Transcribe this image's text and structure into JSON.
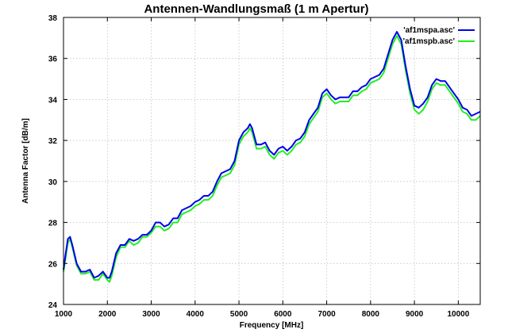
{
  "chart_data": {
    "type": "line",
    "title": "Antennen-Wandlungsmaß (1 m Apertur)",
    "xlabel": "Frequency [MHz]",
    "ylabel": "Antenna Factor [dB/m]",
    "xlim": [
      1000,
      10500
    ],
    "ylim": [
      24,
      38
    ],
    "xticks": [
      1000,
      2000,
      3000,
      4000,
      5000,
      6000,
      7000,
      8000,
      9000,
      10000
    ],
    "yticks": [
      24,
      26,
      28,
      30,
      32,
      34,
      36,
      38
    ],
    "grid": true,
    "legend_position": "top-right",
    "series": [
      {
        "name": "'af1mspa.asc'",
        "color": "#0000ee",
        "points": [
          [
            1000,
            25.7
          ],
          [
            1050,
            26.5
          ],
          [
            1100,
            27.2
          ],
          [
            1150,
            27.3
          ],
          [
            1200,
            26.9
          ],
          [
            1300,
            26.0
          ],
          [
            1400,
            25.6
          ],
          [
            1500,
            25.6
          ],
          [
            1600,
            25.7
          ],
          [
            1700,
            25.3
          ],
          [
            1800,
            25.4
          ],
          [
            1900,
            25.6
          ],
          [
            2000,
            25.3
          ],
          [
            2050,
            25.3
          ],
          [
            2100,
            25.6
          ],
          [
            2200,
            26.5
          ],
          [
            2300,
            26.9
          ],
          [
            2400,
            26.9
          ],
          [
            2500,
            27.2
          ],
          [
            2600,
            27.1
          ],
          [
            2700,
            27.2
          ],
          [
            2800,
            27.4
          ],
          [
            2900,
            27.4
          ],
          [
            3000,
            27.6
          ],
          [
            3100,
            28.0
          ],
          [
            3200,
            28.0
          ],
          [
            3300,
            27.8
          ],
          [
            3400,
            27.9
          ],
          [
            3500,
            28.2
          ],
          [
            3600,
            28.2
          ],
          [
            3700,
            28.6
          ],
          [
            3800,
            28.7
          ],
          [
            3900,
            28.8
          ],
          [
            4000,
            29.0
          ],
          [
            4100,
            29.1
          ],
          [
            4200,
            29.3
          ],
          [
            4300,
            29.3
          ],
          [
            4400,
            29.5
          ],
          [
            4500,
            30.0
          ],
          [
            4600,
            30.4
          ],
          [
            4700,
            30.5
          ],
          [
            4800,
            30.6
          ],
          [
            4900,
            31.0
          ],
          [
            5000,
            32.0
          ],
          [
            5100,
            32.4
          ],
          [
            5200,
            32.6
          ],
          [
            5250,
            32.8
          ],
          [
            5300,
            32.6
          ],
          [
            5400,
            31.8
          ],
          [
            5500,
            31.8
          ],
          [
            5600,
            31.9
          ],
          [
            5700,
            31.5
          ],
          [
            5800,
            31.3
          ],
          [
            5900,
            31.6
          ],
          [
            6000,
            31.7
          ],
          [
            6100,
            31.5
          ],
          [
            6200,
            31.7
          ],
          [
            6300,
            32.0
          ],
          [
            6400,
            32.1
          ],
          [
            6500,
            32.4
          ],
          [
            6600,
            33.0
          ],
          [
            6700,
            33.3
          ],
          [
            6800,
            33.6
          ],
          [
            6900,
            34.3
          ],
          [
            7000,
            34.5
          ],
          [
            7100,
            34.2
          ],
          [
            7200,
            34.0
          ],
          [
            7300,
            34.1
          ],
          [
            7400,
            34.1
          ],
          [
            7500,
            34.1
          ],
          [
            7600,
            34.4
          ],
          [
            7700,
            34.4
          ],
          [
            7800,
            34.6
          ],
          [
            7900,
            34.7
          ],
          [
            8000,
            35.0
          ],
          [
            8100,
            35.1
          ],
          [
            8200,
            35.2
          ],
          [
            8300,
            35.5
          ],
          [
            8400,
            36.2
          ],
          [
            8500,
            36.9
          ],
          [
            8600,
            37.3
          ],
          [
            8700,
            36.9
          ],
          [
            8800,
            35.6
          ],
          [
            8900,
            34.5
          ],
          [
            9000,
            33.7
          ],
          [
            9100,
            33.6
          ],
          [
            9200,
            33.8
          ],
          [
            9300,
            34.1
          ],
          [
            9400,
            34.7
          ],
          [
            9500,
            35.0
          ],
          [
            9600,
            34.9
          ],
          [
            9700,
            34.9
          ],
          [
            9800,
            34.6
          ],
          [
            9900,
            34.3
          ],
          [
            10000,
            34.0
          ],
          [
            10100,
            33.6
          ],
          [
            10200,
            33.5
          ],
          [
            10300,
            33.2
          ],
          [
            10400,
            33.3
          ],
          [
            10500,
            33.4
          ]
        ]
      },
      {
        "name": "'af1mspb.asc'",
        "color": "#22ee22",
        "points": [
          [
            1000,
            25.6
          ],
          [
            1050,
            26.3
          ],
          [
            1100,
            27.0
          ],
          [
            1150,
            27.2
          ],
          [
            1200,
            26.8
          ],
          [
            1300,
            25.9
          ],
          [
            1400,
            25.5
          ],
          [
            1500,
            25.5
          ],
          [
            1600,
            25.6
          ],
          [
            1700,
            25.2
          ],
          [
            1800,
            25.2
          ],
          [
            1900,
            25.5
          ],
          [
            2000,
            25.2
          ],
          [
            2050,
            25.1
          ],
          [
            2100,
            25.4
          ],
          [
            2200,
            26.3
          ],
          [
            2300,
            26.8
          ],
          [
            2400,
            26.8
          ],
          [
            2500,
            27.1
          ],
          [
            2600,
            26.9
          ],
          [
            2700,
            27.0
          ],
          [
            2800,
            27.3
          ],
          [
            2900,
            27.3
          ],
          [
            3000,
            27.5
          ],
          [
            3100,
            27.8
          ],
          [
            3200,
            27.8
          ],
          [
            3300,
            27.6
          ],
          [
            3400,
            27.7
          ],
          [
            3500,
            28.0
          ],
          [
            3600,
            28.0
          ],
          [
            3700,
            28.4
          ],
          [
            3800,
            28.5
          ],
          [
            3900,
            28.6
          ],
          [
            4000,
            28.8
          ],
          [
            4100,
            28.9
          ],
          [
            4200,
            29.1
          ],
          [
            4300,
            29.1
          ],
          [
            4400,
            29.3
          ],
          [
            4500,
            29.8
          ],
          [
            4600,
            30.2
          ],
          [
            4700,
            30.3
          ],
          [
            4800,
            30.4
          ],
          [
            4900,
            30.8
          ],
          [
            5000,
            31.8
          ],
          [
            5100,
            32.2
          ],
          [
            5200,
            32.4
          ],
          [
            5250,
            32.6
          ],
          [
            5300,
            32.4
          ],
          [
            5400,
            31.6
          ],
          [
            5500,
            31.6
          ],
          [
            5600,
            31.7
          ],
          [
            5700,
            31.3
          ],
          [
            5800,
            31.1
          ],
          [
            5900,
            31.4
          ],
          [
            6000,
            31.5
          ],
          [
            6100,
            31.3
          ],
          [
            6200,
            31.5
          ],
          [
            6300,
            31.8
          ],
          [
            6400,
            31.9
          ],
          [
            6500,
            32.2
          ],
          [
            6600,
            32.8
          ],
          [
            6700,
            33.1
          ],
          [
            6800,
            33.4
          ],
          [
            6900,
            34.1
          ],
          [
            7000,
            34.3
          ],
          [
            7100,
            34.0
          ],
          [
            7200,
            33.8
          ],
          [
            7300,
            33.9
          ],
          [
            7400,
            33.9
          ],
          [
            7500,
            33.9
          ],
          [
            7600,
            34.2
          ],
          [
            7700,
            34.2
          ],
          [
            7800,
            34.4
          ],
          [
            7900,
            34.5
          ],
          [
            8000,
            34.8
          ],
          [
            8100,
            34.9
          ],
          [
            8200,
            35.0
          ],
          [
            8300,
            35.3
          ],
          [
            8400,
            36.0
          ],
          [
            8500,
            36.7
          ],
          [
            8600,
            37.1
          ],
          [
            8700,
            36.7
          ],
          [
            8800,
            35.4
          ],
          [
            8900,
            34.3
          ],
          [
            9000,
            33.5
          ],
          [
            9100,
            33.3
          ],
          [
            9200,
            33.5
          ],
          [
            9300,
            33.9
          ],
          [
            9400,
            34.5
          ],
          [
            9500,
            34.8
          ],
          [
            9600,
            34.7
          ],
          [
            9700,
            34.7
          ],
          [
            9800,
            34.4
          ],
          [
            9900,
            34.1
          ],
          [
            10000,
            33.8
          ],
          [
            10100,
            33.4
          ],
          [
            10200,
            33.3
          ],
          [
            10300,
            33.0
          ],
          [
            10400,
            33.0
          ],
          [
            10500,
            33.2
          ]
        ]
      }
    ]
  }
}
